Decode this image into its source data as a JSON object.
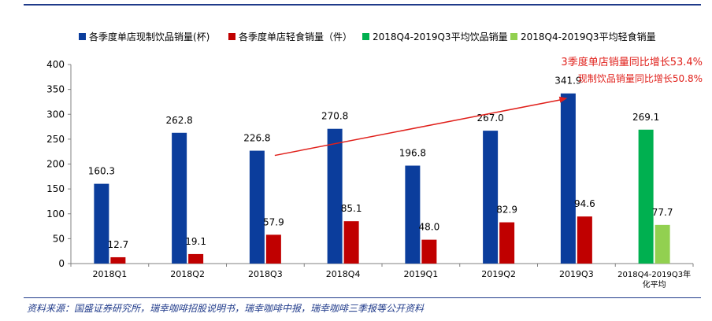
{
  "chart_data": {
    "type": "bar",
    "categories": [
      "2018Q1",
      "2018Q2",
      "2018Q3",
      "2018Q4",
      "2019Q1",
      "2019Q2",
      "2019Q3",
      "2018Q4-2019Q3年化平均"
    ],
    "category_label_lines": [
      [
        "2018Q1"
      ],
      [
        "2018Q2"
      ],
      [
        "2018Q3"
      ],
      [
        "2018Q4"
      ],
      [
        "2019Q1"
      ],
      [
        "2019Q2"
      ],
      [
        "2019Q3"
      ],
      [
        "2018Q4-2019Q3年",
        "化平均"
      ]
    ],
    "series": [
      {
        "name": "各季度单店现制饮品销量(杯)",
        "color": "#0b3d9c",
        "values": [
          160.3,
          262.8,
          226.8,
          270.8,
          196.8,
          267.0,
          341.9,
          null
        ]
      },
      {
        "name": "各季度单店轻食销量（件）",
        "color": "#c00000",
        "values": [
          12.7,
          19.1,
          57.9,
          85.1,
          48.0,
          82.9,
          94.6,
          null
        ]
      },
      {
        "name": "2018Q4-2019Q3平均饮品销量",
        "color": "#00b050",
        "values": [
          null,
          null,
          null,
          null,
          null,
          null,
          null,
          269.1
        ]
      },
      {
        "name": "2018Q4-2019Q3平均轻食销量",
        "color": "#92d050",
        "values": [
          null,
          null,
          null,
          null,
          null,
          null,
          null,
          77.7
        ]
      }
    ],
    "value_labels": [
      [
        "160.3",
        "262.8",
        "226.8",
        "270.8",
        "196.8",
        "267.0",
        "341.9",
        null
      ],
      [
        "12.7",
        "19.1",
        "57.9",
        "85.1",
        "48.0",
        "82.9",
        "94.6",
        null
      ],
      [
        null,
        null,
        null,
        null,
        null,
        null,
        null,
        "269.1"
      ],
      [
        null,
        null,
        null,
        null,
        null,
        null,
        null,
        "77.7"
      ]
    ],
    "yticks": [
      0,
      50,
      100,
      150,
      200,
      250,
      300,
      350,
      400
    ],
    "ylim": [
      0,
      400
    ],
    "grid": false,
    "legend": "top",
    "annotations": [
      "3季度单店销量同比增长53.4%",
      "现制饮品销量同比增长50.8%"
    ],
    "arrow": {
      "from_category": "2018Q3",
      "to_category": "2019Q3",
      "color": "#e0201b"
    }
  },
  "source_text": "资料来源：国盛证券研究所，瑞幸咖啡招股说明书，瑞幸咖啡中报，瑞幸咖啡三季报等公开资料"
}
